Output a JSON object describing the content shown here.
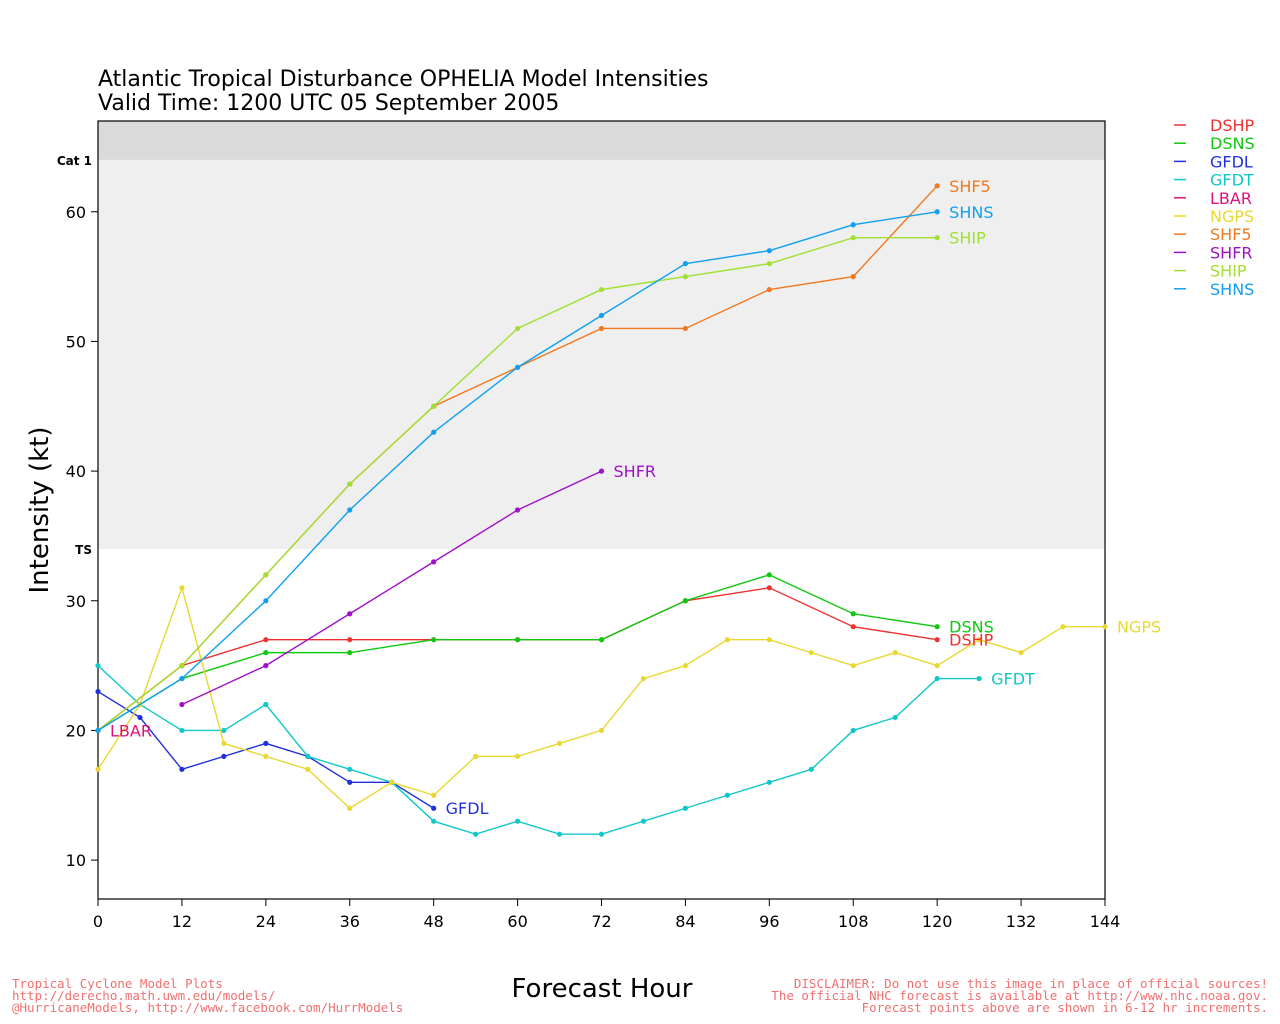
{
  "chart_data": {
    "type": "line",
    "title": "Atlantic Tropical Disturbance OPHELIA Model Intensities",
    "subtitle": "Valid Time: 1200 UTC 05 September 2005",
    "xlabel": "Forecast Hour",
    "ylabel": "Intensity (kt)",
    "xlim": [
      0,
      144
    ],
    "ylim": [
      7,
      67
    ],
    "xticks": [
      "0",
      "12",
      "24",
      "36",
      "48",
      "60",
      "72",
      "84",
      "96",
      "108",
      "120",
      "132",
      "144"
    ],
    "yticks": [
      "10",
      "20",
      "30",
      "40",
      "50",
      "60"
    ],
    "bands": [
      {
        "label": "",
        "from": 7,
        "to": 34,
        "color": "#ffffff"
      },
      {
        "label": "TS",
        "from": 34,
        "to": 64,
        "color": "#efefef"
      },
      {
        "label": "Cat 1",
        "from": 64,
        "to": 67,
        "color": "#dadada"
      }
    ],
    "legend_position": "right",
    "series": [
      {
        "name": "DSHP",
        "color": "#f03030",
        "label": "DSHP",
        "points": [
          [
            0,
            20
          ],
          [
            12,
            25
          ],
          [
            24,
            27
          ],
          [
            36,
            27
          ],
          [
            48,
            27
          ],
          [
            60,
            27
          ],
          [
            72,
            27
          ],
          [
            84,
            30
          ],
          [
            96,
            31
          ],
          [
            108,
            28
          ],
          [
            120,
            27
          ]
        ]
      },
      {
        "name": "DSNS",
        "color": "#10c810",
        "label": "DSNS",
        "points": [
          [
            0,
            20
          ],
          [
            12,
            24
          ],
          [
            24,
            26
          ],
          [
            36,
            26
          ],
          [
            48,
            27
          ],
          [
            60,
            27
          ],
          [
            72,
            27
          ],
          [
            84,
            30
          ],
          [
            96,
            32
          ],
          [
            108,
            29
          ],
          [
            120,
            28
          ]
        ]
      },
      {
        "name": "GFDL",
        "color": "#2030e0",
        "label": "GFDL",
        "points": [
          [
            0,
            23
          ],
          [
            6,
            21
          ],
          [
            12,
            17
          ],
          [
            18,
            18
          ],
          [
            24,
            19
          ],
          [
            30,
            18
          ],
          [
            36,
            16
          ],
          [
            42,
            16
          ],
          [
            48,
            14
          ]
        ]
      },
      {
        "name": "GFDT",
        "color": "#10c8c8",
        "label": "GFDT",
        "points": [
          [
            0,
            25
          ],
          [
            6,
            22
          ],
          [
            12,
            20
          ],
          [
            18,
            20
          ],
          [
            24,
            22
          ],
          [
            30,
            18
          ],
          [
            36,
            17
          ],
          [
            42,
            16
          ],
          [
            48,
            13
          ],
          [
            54,
            12
          ],
          [
            60,
            13
          ],
          [
            66,
            12
          ],
          [
            72,
            12
          ],
          [
            78,
            13
          ],
          [
            84,
            14
          ],
          [
            90,
            15
          ],
          [
            96,
            16
          ],
          [
            102,
            17
          ],
          [
            108,
            20
          ],
          [
            114,
            21
          ],
          [
            120,
            24
          ],
          [
            126,
            24
          ]
        ]
      },
      {
        "name": "LBAR",
        "color": "#e0107a",
        "label": "LBAR",
        "points": [
          [
            0,
            20
          ]
        ]
      },
      {
        "name": "NGPS",
        "color": "#e8d830",
        "label": "NGPS",
        "points": [
          [
            0,
            17
          ],
          [
            6,
            22
          ],
          [
            12,
            31
          ],
          [
            18,
            19
          ],
          [
            24,
            18
          ],
          [
            30,
            17
          ],
          [
            36,
            14
          ],
          [
            42,
            16
          ],
          [
            48,
            15
          ],
          [
            54,
            18
          ],
          [
            60,
            18
          ],
          [
            66,
            19
          ],
          [
            72,
            20
          ],
          [
            78,
            24
          ],
          [
            84,
            25
          ],
          [
            90,
            27
          ],
          [
            96,
            27
          ],
          [
            102,
            26
          ],
          [
            108,
            25
          ],
          [
            114,
            26
          ],
          [
            120,
            25
          ],
          [
            126,
            27
          ],
          [
            132,
            26
          ],
          [
            138,
            28
          ],
          [
            144,
            28
          ]
        ]
      },
      {
        "name": "SHF5",
        "color": "#f07820",
        "label": "SHF5",
        "points": [
          [
            0,
            20
          ],
          [
            12,
            25
          ],
          [
            24,
            32
          ],
          [
            36,
            39
          ],
          [
            48,
            45
          ],
          [
            60,
            48
          ],
          [
            72,
            51
          ],
          [
            84,
            51
          ],
          [
            96,
            54
          ],
          [
            108,
            55
          ],
          [
            120,
            62
          ]
        ]
      },
      {
        "name": "SHFR",
        "color": "#a010c8",
        "label": "SHFR",
        "points": [
          [
            12,
            22
          ],
          [
            24,
            25
          ],
          [
            36,
            29
          ],
          [
            48,
            33
          ],
          [
            60,
            37
          ],
          [
            72,
            40
          ]
        ]
      },
      {
        "name": "SHIP",
        "color": "#a0e030",
        "label": "SHIP",
        "points": [
          [
            0,
            20
          ],
          [
            12,
            25
          ],
          [
            24,
            32
          ],
          [
            36,
            39
          ],
          [
            48,
            45
          ],
          [
            60,
            51
          ],
          [
            72,
            54
          ],
          [
            84,
            55
          ],
          [
            96,
            56
          ],
          [
            108,
            58
          ],
          [
            120,
            58
          ]
        ]
      },
      {
        "name": "SHNS",
        "color": "#10a0f0",
        "label": "SHNS",
        "points": [
          [
            0,
            20
          ],
          [
            12,
            24
          ],
          [
            24,
            30
          ],
          [
            36,
            37
          ],
          [
            48,
            43
          ],
          [
            60,
            48
          ],
          [
            72,
            52
          ],
          [
            84,
            56
          ],
          [
            96,
            57
          ],
          [
            108,
            59
          ],
          [
            120,
            60
          ]
        ]
      }
    ]
  },
  "footer": {
    "left": [
      "Tropical Cyclone Model Plots",
      "http://derecho.math.uwm.edu/models/",
      "@HurricaneModels, http://www.facebook.com/HurrModels"
    ],
    "right": [
      "DISCLAIMER: Do not use this image in place of official sources!",
      "The official NHC forecast is available at http://www.nhc.noaa.gov.",
      "Forecast points above are shown in 6-12 hr increments."
    ]
  }
}
